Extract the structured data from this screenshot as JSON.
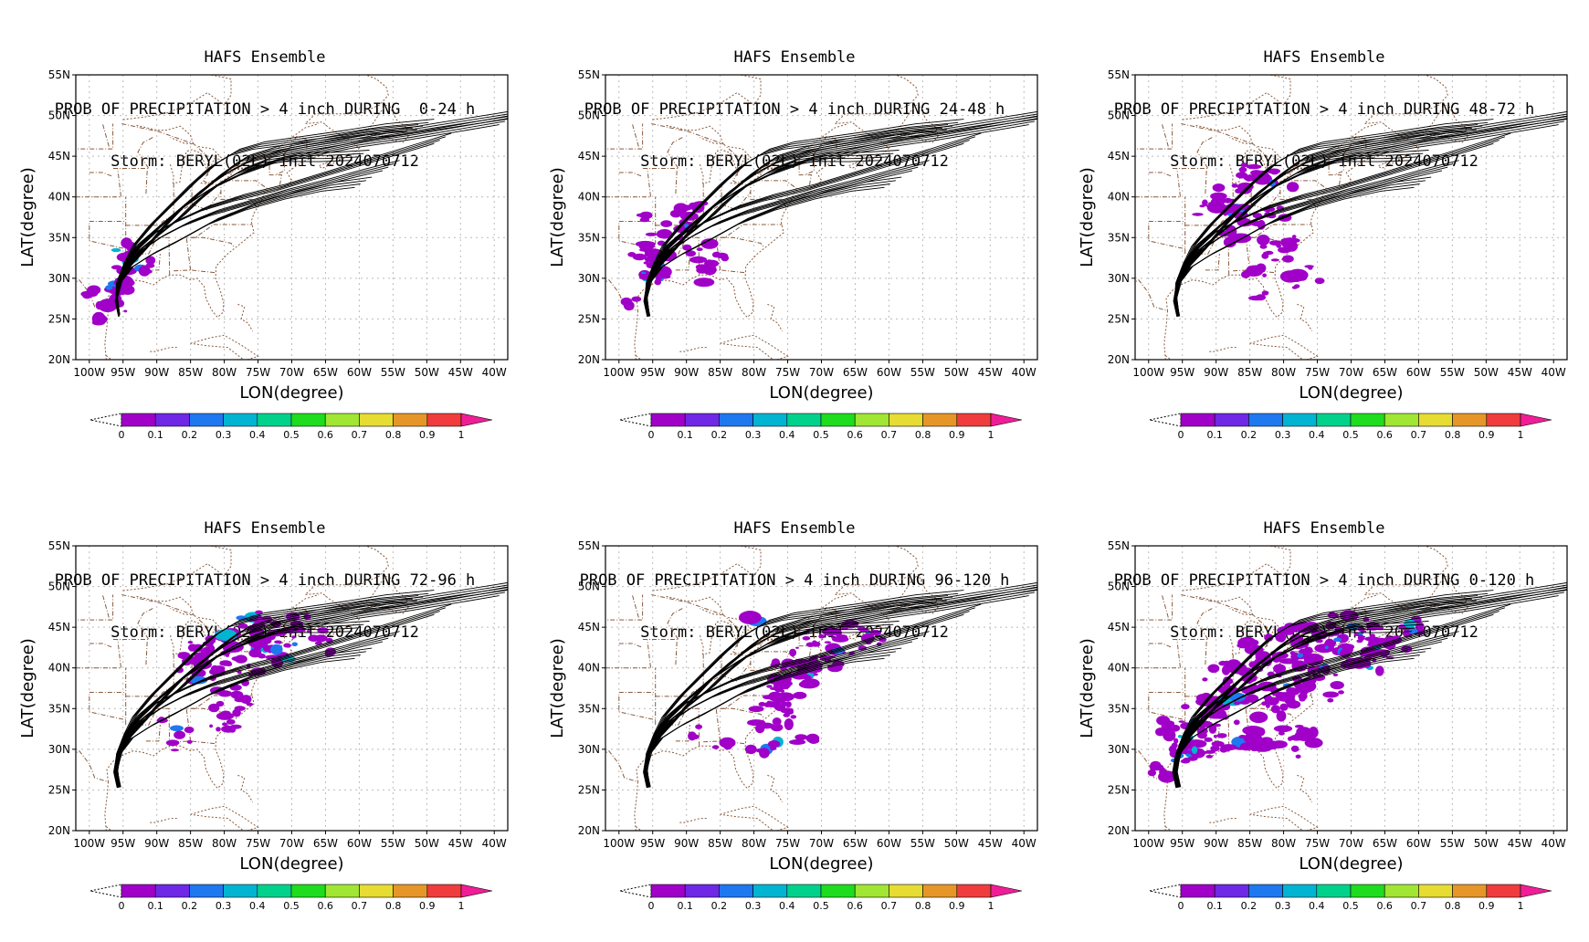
{
  "model": "HAFS Ensemble",
  "storm_line": "Storm: BERYL(02L) init 2024070712",
  "axes": {
    "xlabel": "LON(degree)",
    "ylabel": "LAT(degree)",
    "xticks": [
      "100W",
      "95W",
      "90W",
      "85W",
      "80W",
      "75W",
      "70W",
      "65W",
      "60W",
      "55W",
      "50W",
      "45W",
      "40W"
    ],
    "yticks": [
      "55N",
      "50N",
      "45N",
      "40N",
      "35N",
      "30N",
      "25N",
      "20N"
    ]
  },
  "colorbar": {
    "labels": [
      "0",
      "0.1",
      "0.2",
      "0.3",
      "0.4",
      "0.5",
      "0.6",
      "0.7",
      "0.8",
      "0.9",
      "1"
    ],
    "colors": [
      "#a000c8",
      "#6e28e6",
      "#1e78f0",
      "#00b4d2",
      "#00d28c",
      "#1edc1e",
      "#a0e632",
      "#e6dc32",
      "#e69628",
      "#f03c3c"
    ],
    "over_color": "#f01e96"
  },
  "panels": [
    {
      "line2": "PROB OF PRECIPITATION > 4 inch DURING  0-24 h"
    },
    {
      "line2": "PROB OF PRECIPITATION > 4 inch DURING 24-48 h"
    },
    {
      "line2": "PROB OF PRECIPITATION > 4 inch DURING 48-72 h"
    },
    {
      "line2": "PROB OF PRECIPITATION > 4 inch DURING 72-96 h"
    },
    {
      "line2": "PROB OF PRECIPITATION > 4 inch DURING 96-120 h"
    },
    {
      "line2": "PROB OF PRECIPITATION > 4 inch DURING 0-120 h"
    }
  ]
}
